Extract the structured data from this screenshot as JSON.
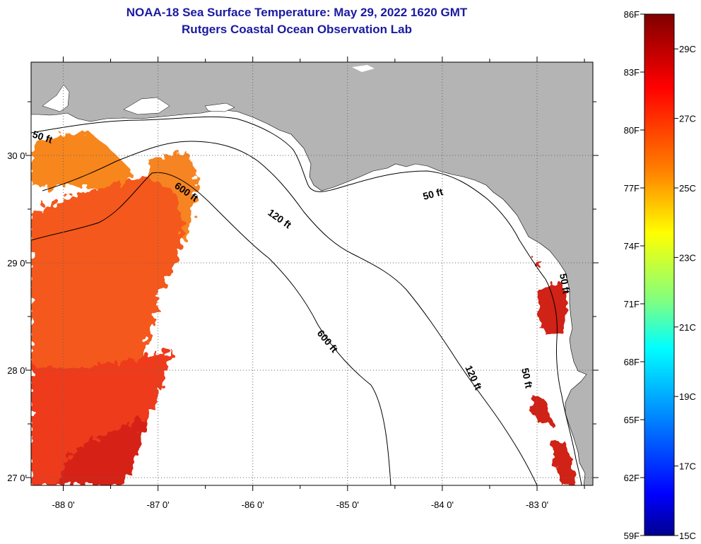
{
  "title": {
    "line1": "NOAA-18 Sea Surface Temperature:  May 29, 2022 1620 GMT",
    "line2": "Rutgers Coastal Ocean Observation Lab"
  },
  "map": {
    "lon_ticks": [
      {
        "value": -88,
        "label": "-88 0'"
      },
      {
        "value": -87,
        "label": "-87 0'"
      },
      {
        "value": -86,
        "label": "-86 0'"
      },
      {
        "value": -85,
        "label": "-85 0'"
      },
      {
        "value": -84,
        "label": "-84 0'"
      },
      {
        "value": -83,
        "label": "-83 0'"
      }
    ],
    "lat_ticks": [
      {
        "value": 30,
        "label": "30 0'"
      },
      {
        "value": 29,
        "label": "29 0'"
      },
      {
        "value": 28,
        "label": "28 0'"
      },
      {
        "value": 27,
        "label": "27 0'"
      }
    ],
    "isobath_labels": [
      "50 ft",
      "600 ft",
      "120 ft",
      "50 ft",
      "600 ft",
      "120 ft",
      "50 ft",
      "50 ft"
    ],
    "colors": {
      "land": "#b4b4b4",
      "water": "#ffffff",
      "contour": "#000000"
    }
  },
  "colorbar": {
    "fahrenheit": [
      "86F",
      "83F",
      "80F",
      "77F",
      "74F",
      "71F",
      "68F",
      "65F",
      "62F",
      "59F"
    ],
    "celsius": [
      "29C",
      "27C",
      "25C",
      "23C",
      "21C",
      "19C",
      "17C",
      "15C"
    ],
    "stops": [
      "#7f0000",
      "#ff0000",
      "#ff8000",
      "#ffff00",
      "#80ff80",
      "#00ffff",
      "#0080ff",
      "#0000ff",
      "#00008f"
    ]
  }
}
